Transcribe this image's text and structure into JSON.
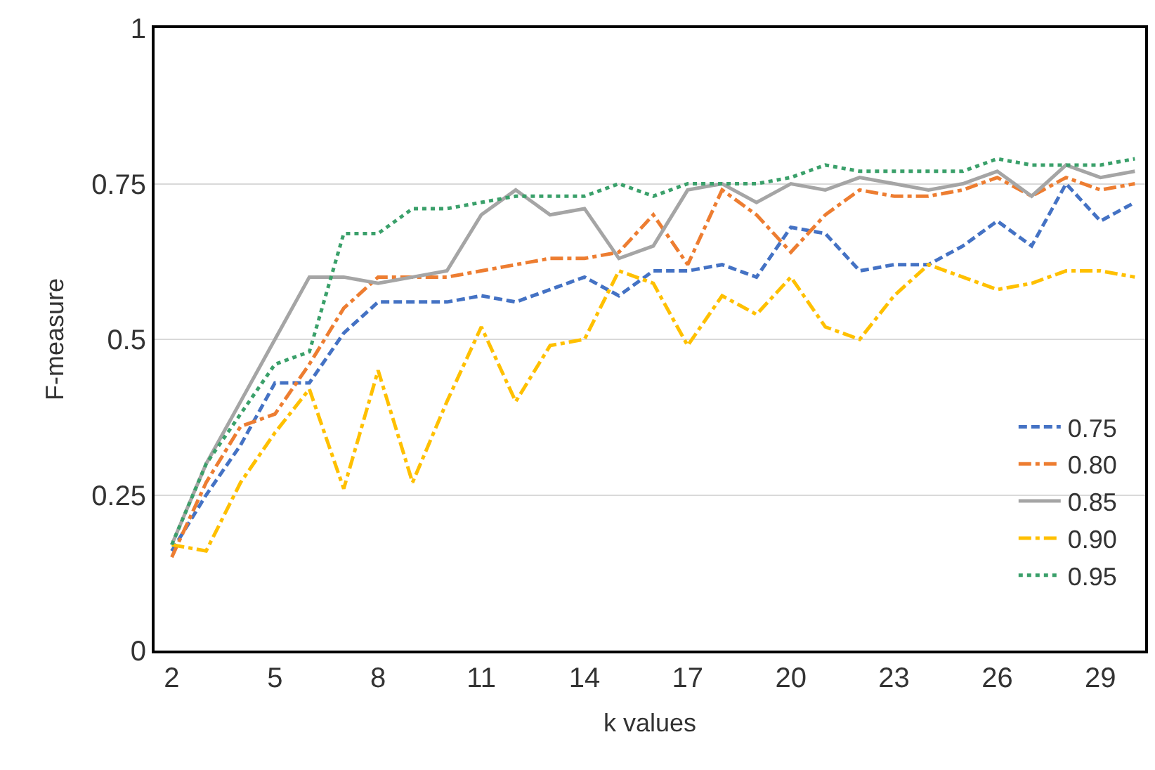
{
  "chart_data": {
    "type": "line",
    "xlabel": "k values",
    "ylabel": "F-measure",
    "x": [
      2,
      3,
      4,
      5,
      6,
      7,
      8,
      9,
      10,
      11,
      12,
      13,
      14,
      15,
      16,
      17,
      18,
      19,
      20,
      21,
      22,
      23,
      24,
      25,
      26,
      27,
      28,
      29,
      30
    ],
    "xlim": [
      1.5,
      30.3
    ],
    "xticks": [
      2,
      5,
      8,
      11,
      14,
      17,
      20,
      23,
      26,
      29
    ],
    "ylim": [
      0,
      1
    ],
    "yticks": [
      0,
      {
        "value": 0.25,
        "label": "0.25"
      },
      {
        "value": 0.5,
        "label": "0.5"
      },
      {
        "value": 0.75,
        "label": "0.75"
      },
      1
    ],
    "grid": "y",
    "legend": "bottom right",
    "marker": "none",
    "series": [
      {
        "name": "0.75",
        "color": "#4472c4",
        "line_style": "dashed",
        "values": [
          0.16,
          0.25,
          0.33,
          0.43,
          0.43,
          0.51,
          0.56,
          0.56,
          0.56,
          0.57,
          0.56,
          0.58,
          0.6,
          0.57,
          0.61,
          0.61,
          0.62,
          0.6,
          0.68,
          0.67,
          0.61,
          0.62,
          0.62,
          0.65,
          0.69,
          0.65,
          0.75,
          0.69,
          0.72
        ]
      },
      {
        "name": "0.80",
        "color": "#ed7d31",
        "line_style": "dashdot",
        "values": [
          0.15,
          0.27,
          0.36,
          0.38,
          0.46,
          0.55,
          0.6,
          0.6,
          0.6,
          0.61,
          0.62,
          0.63,
          0.63,
          0.64,
          0.7,
          0.62,
          0.74,
          0.7,
          0.64,
          0.7,
          0.74,
          0.73,
          0.73,
          0.74,
          0.76,
          0.73,
          0.76,
          0.74,
          0.75
        ]
      },
      {
        "name": "0.85",
        "color": "#a5a5a5",
        "line_style": "solid",
        "values": [
          0.17,
          0.3,
          0.4,
          0.5,
          0.6,
          0.6,
          0.59,
          0.6,
          0.61,
          0.7,
          0.74,
          0.7,
          0.71,
          0.63,
          0.65,
          0.74,
          0.75,
          0.72,
          0.75,
          0.74,
          0.76,
          0.75,
          0.74,
          0.75,
          0.77,
          0.73,
          0.78,
          0.76,
          0.77
        ]
      },
      {
        "name": "0.90",
        "color": "#ffc000",
        "line_style": "dashdot",
        "values": [
          0.17,
          0.16,
          0.27,
          0.35,
          0.42,
          0.26,
          0.45,
          0.27,
          0.4,
          0.52,
          0.4,
          0.49,
          0.5,
          0.61,
          0.59,
          0.49,
          0.57,
          0.54,
          0.6,
          0.52,
          0.5,
          0.57,
          0.62,
          0.6,
          0.58,
          0.59,
          0.61,
          0.61,
          0.6
        ]
      },
      {
        "name": "0.95",
        "color": "#3aa06a",
        "line_style": "dotted",
        "values": [
          0.17,
          0.3,
          0.38,
          0.46,
          0.48,
          0.67,
          0.67,
          0.71,
          0.71,
          0.72,
          0.73,
          0.73,
          0.73,
          0.75,
          0.73,
          0.75,
          0.75,
          0.75,
          0.76,
          0.78,
          0.77,
          0.77,
          0.77,
          0.77,
          0.79,
          0.78,
          0.78,
          0.78,
          0.79
        ]
      }
    ]
  }
}
